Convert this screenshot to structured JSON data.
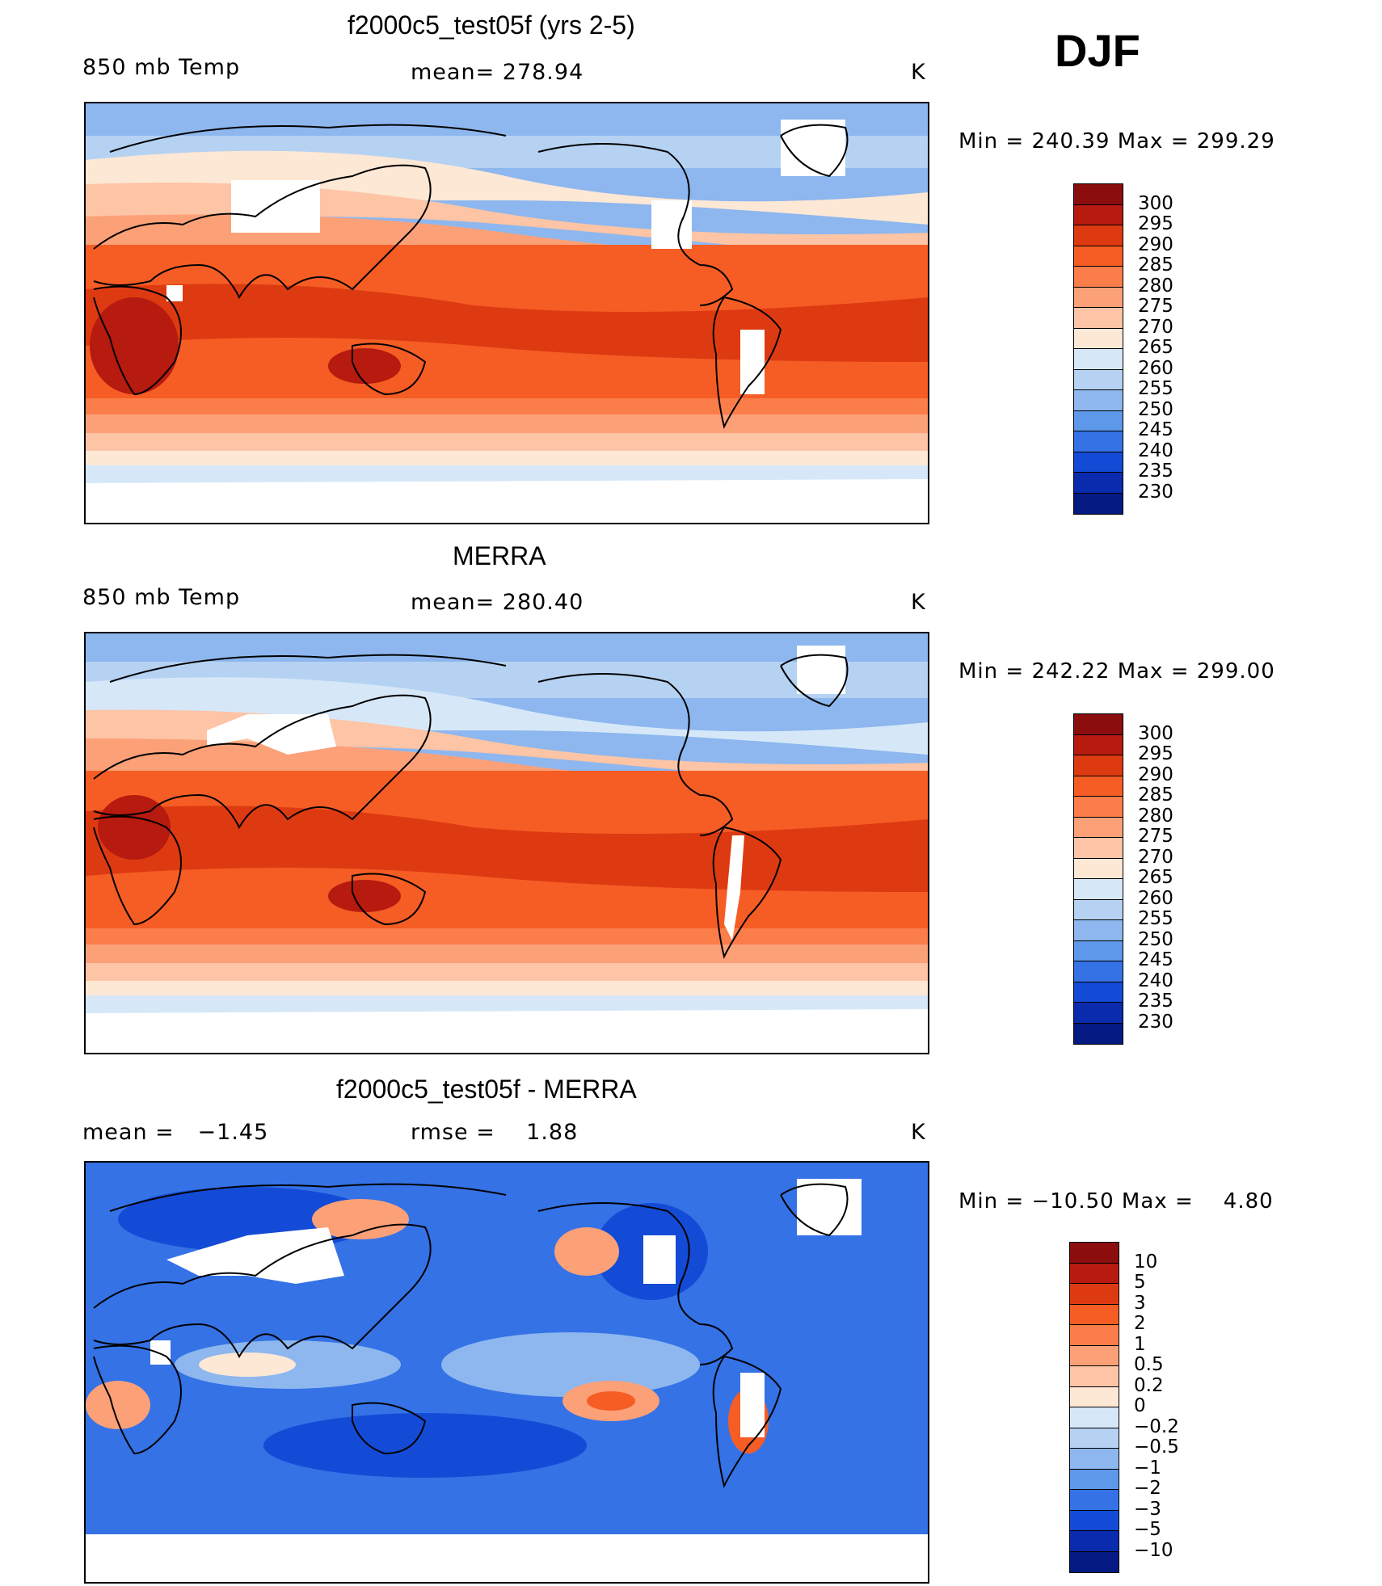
{
  "season": "DJF",
  "panels": [
    {
      "title": "f2000c5_test05f (yrs 2-5)",
      "left_label": "850 mb Temp",
      "center_label": "mean= 278.94",
      "units": "K",
      "minmax": "Min = 240.39 Max = 299.29",
      "colorbar": {
        "labels": [
          "300",
          "295",
          "290",
          "285",
          "280",
          "275",
          "270",
          "265",
          "260",
          "255",
          "250",
          "245",
          "240",
          "235",
          "230"
        ],
        "colors": [
          "#8B0D0D",
          "#B71A0E",
          "#DE3A12",
          "#F55D25",
          "#FB7D4A",
          "#FCA078",
          "#FDC4A5",
          "#FDE7D5",
          "#D6E8F8",
          "#B6D2F2",
          "#8DB7EE",
          "#5E98EA",
          "#3472E6",
          "#144BD6",
          "#0A2BAE",
          "#041A82"
        ]
      },
      "map_colors": {
        "ocean_tropics": "#DE3A12",
        "ocean_subtrop": "#F55D25",
        "ocean_mid": "#FB7D4A",
        "mid_lat": "#FCA078",
        "high_lat": "#FDC4A5",
        "cold": "#B6D2F2",
        "colder": "#8DB7EE",
        "polar": "#5E98EA",
        "warm_core": "#B71A0E"
      }
    },
    {
      "title": "MERRA",
      "left_label": "850 mb Temp",
      "center_label": "mean= 280.40",
      "units": "K",
      "minmax": "Min = 242.22 Max = 299.00",
      "colorbar": {
        "labels": [
          "300",
          "295",
          "290",
          "285",
          "280",
          "275",
          "270",
          "265",
          "260",
          "255",
          "250",
          "245",
          "240",
          "235",
          "230"
        ],
        "colors": [
          "#8B0D0D",
          "#B71A0E",
          "#DE3A12",
          "#F55D25",
          "#FB7D4A",
          "#FCA078",
          "#FDC4A5",
          "#FDE7D5",
          "#D6E8F8",
          "#B6D2F2",
          "#8DB7EE",
          "#5E98EA",
          "#3472E6",
          "#144BD6",
          "#0A2BAE",
          "#041A82"
        ]
      },
      "map_colors": {
        "ocean_tropics": "#DE3A12",
        "ocean_subtrop": "#F55D25",
        "ocean_mid": "#FB7D4A",
        "mid_lat": "#FCA078",
        "high_lat": "#FDC4A5",
        "cold": "#B6D2F2",
        "colder": "#8DB7EE",
        "polar": "#5E98EA",
        "warm_core": "#B71A0E"
      }
    },
    {
      "title": "f2000c5_test05f - MERRA",
      "left_label": "mean =   −1.45",
      "center_label": "rmse =    1.88",
      "units": "K",
      "minmax": "Min = −10.50 Max =    4.80",
      "colorbar": {
        "labels": [
          "10",
          "5",
          "3",
          "2",
          "1",
          "0.5",
          "0.2",
          "0",
          "−0.2",
          "−0.5",
          "−1",
          "−2",
          "−3",
          "−5",
          "−10"
        ],
        "colors": [
          "#8B0D0D",
          "#B71A0E",
          "#DE3A12",
          "#F55D25",
          "#FB7D4A",
          "#FCA078",
          "#FDC4A5",
          "#FDE7D5",
          "#D6E8F8",
          "#B6D2F2",
          "#8DB7EE",
          "#5E98EA",
          "#3472E6",
          "#144BD6",
          "#0A2BAE",
          "#041A82"
        ]
      },
      "map_colors": {
        "base": "#3472E6",
        "light": "#8DB7EE",
        "lighter": "#B6D2F2",
        "dark": "#144BD6",
        "warm": "#FCA078",
        "hot": "#F55D25"
      }
    }
  ]
}
